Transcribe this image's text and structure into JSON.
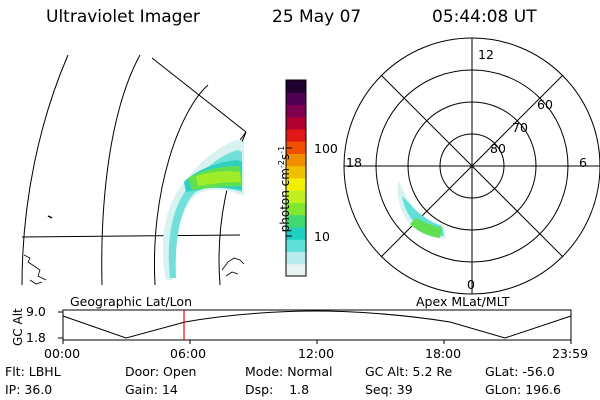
{
  "header": {
    "instrument": "Ultraviolet Imager",
    "date": "25 May 07",
    "time": "05:44:08 UT"
  },
  "geo_panel": {
    "label": "Geographic Lat/Lon"
  },
  "polar_panel": {
    "label": "Apex MLat/MLT",
    "mlt_labels": [
      "12",
      "18",
      "6",
      "0"
    ],
    "lat_labels": [
      "60",
      "70",
      "80"
    ]
  },
  "colorbar": {
    "label_main": "photon cm",
    "label_exp": "-2",
    "label_s": "s",
    "label_exp2": "-1",
    "ticks": [
      "100",
      "10"
    ],
    "colors": [
      "#e8f4f4",
      "#b8ecec",
      "#60e0d8",
      "#20d0c0",
      "#40d870",
      "#80e830",
      "#c0f020",
      "#f0f000",
      "#f0c000",
      "#f09000",
      "#f05000",
      "#e01818",
      "#b00030",
      "#800050",
      "#500050",
      "#200030"
    ]
  },
  "altitude_plot": {
    "ylabel": "GC Alt",
    "yticks": [
      "9.0",
      "1.8"
    ],
    "xticks": [
      "00:00",
      "06:00",
      "12:00",
      "18:00",
      "23:59"
    ],
    "current_time_color": "#ff0000"
  },
  "footer": {
    "row1": [
      {
        "label": "Flt:",
        "value": "LBHL"
      },
      {
        "label": "Door:",
        "value": "Open"
      },
      {
        "label": "Mode:",
        "value": "Normal"
      },
      {
        "label": "GC Alt:",
        "value": "5.2 Re"
      },
      {
        "label": "GLat:",
        "value": "-56.0"
      }
    ],
    "row2": [
      {
        "label": "IP:",
        "value": "36.0"
      },
      {
        "label": "Gain:",
        "value": "14"
      },
      {
        "label": "Dsp:",
        "value": "1.8"
      },
      {
        "label": "Seq:",
        "value": "39"
      },
      {
        "label": "GLon:",
        "value": "196.6"
      }
    ]
  }
}
